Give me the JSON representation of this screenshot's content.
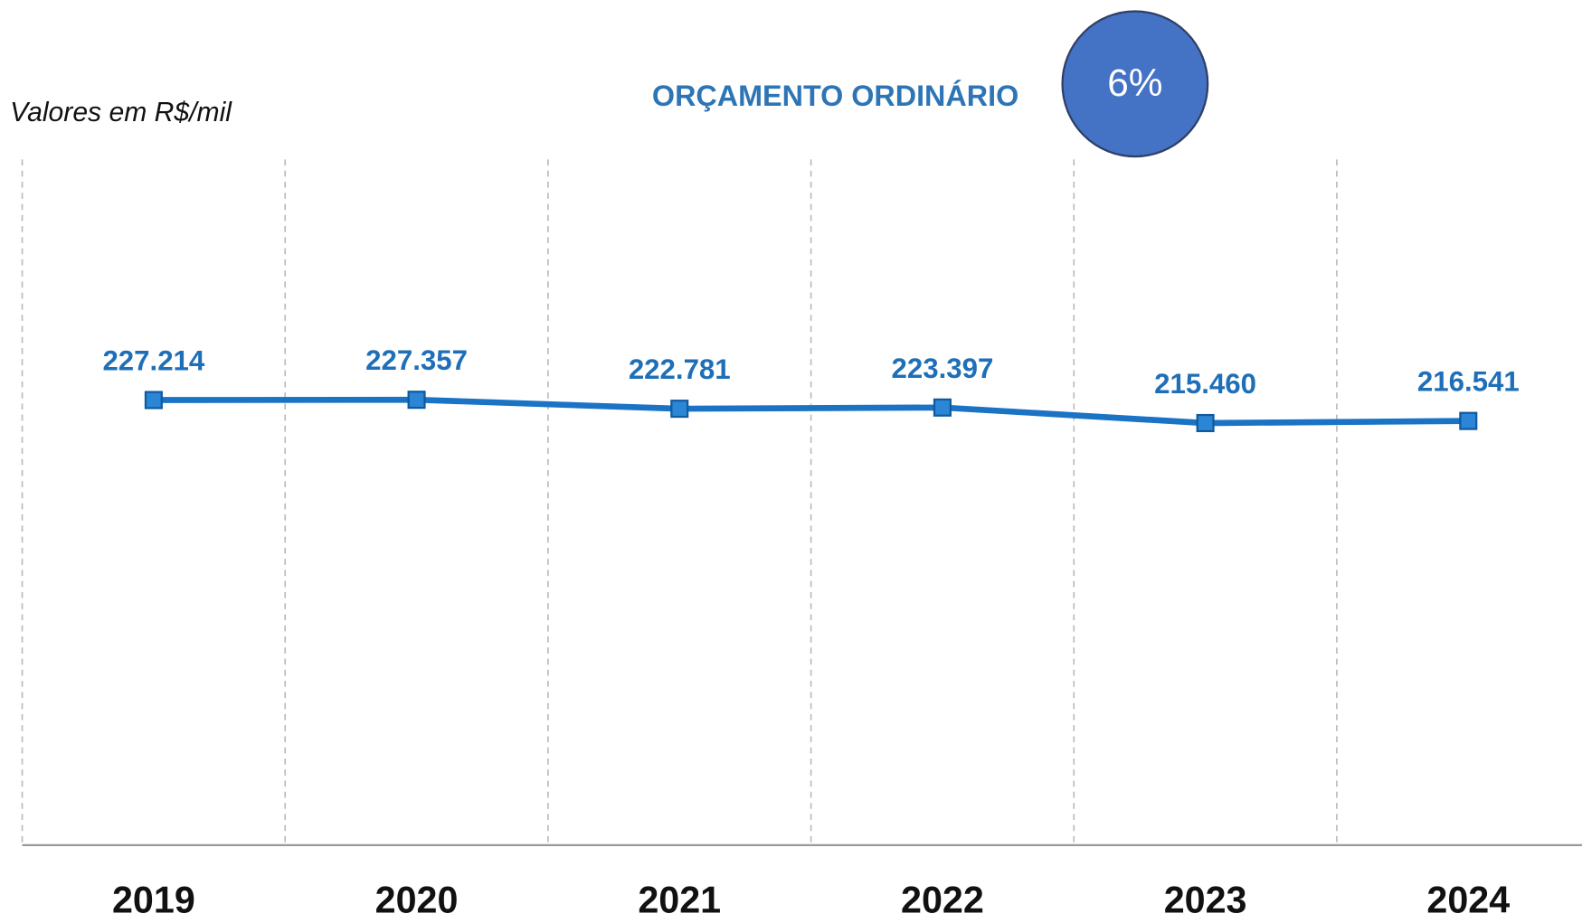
{
  "chart_data": {
    "type": "line",
    "title": "ORÇAMENTO  ORDINÁRIO",
    "subtitle": "Valores em R$/mil",
    "annotation": "6%",
    "categories": [
      "2019",
      "2020",
      "2021",
      "2022",
      "2023",
      "2024"
    ],
    "values": [
      227214,
      227357,
      222781,
      223397,
      215460,
      216541
    ],
    "value_labels": [
      "227.214",
      "227.357",
      "222.781",
      "223.397",
      "215.460",
      "216.541"
    ],
    "color": "#1a73c4",
    "ylim": [
      0,
      350000
    ],
    "grid": true
  }
}
